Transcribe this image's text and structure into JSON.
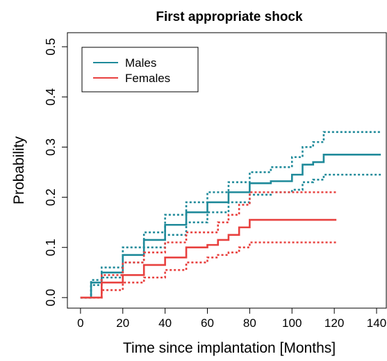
{
  "chart_data": {
    "type": "step",
    "title": "First appropriate shock",
    "x_label": "Time since implantation [Months]",
    "y_label": "Probability",
    "xlim": [
      -6.2,
      144.6
    ],
    "ylim": [
      -0.021,
      0.528
    ],
    "xticks": [
      0,
      20,
      40,
      60,
      80,
      100,
      120,
      140
    ],
    "yticks": [
      {
        "value": 0,
        "label": "0.0"
      },
      0.1,
      0.2,
      0.3,
      0.4,
      0.5
    ],
    "legend": "top-left",
    "series": [
      {
        "name": "Males",
        "color": "#1f8a9a",
        "x": [
          0,
          5,
          10,
          20,
          30,
          40,
          50,
          60,
          70,
          80,
          90,
          100,
          105,
          110,
          115,
          142
        ],
        "values": [
          0,
          0.03,
          0.05,
          0.085,
          0.115,
          0.145,
          0.17,
          0.19,
          0.21,
          0.228,
          0.232,
          0.245,
          0.265,
          0.27,
          0.285,
          0.285
        ],
        "upper": [
          0,
          0.035,
          0.06,
          0.1,
          0.13,
          0.165,
          0.19,
          0.21,
          0.23,
          0.25,
          0.26,
          0.28,
          0.3,
          0.31,
          0.33,
          0.33
        ],
        "lower": [
          0,
          0.025,
          0.04,
          0.07,
          0.1,
          0.125,
          0.15,
          0.17,
          0.19,
          0.205,
          0.21,
          0.215,
          0.23,
          0.235,
          0.245,
          0.245
        ]
      },
      {
        "name": "Females",
        "color": "#e8413f",
        "x": [
          0,
          10,
          20,
          30,
          40,
          50,
          60,
          65,
          70,
          75,
          80,
          121
        ],
        "values": [
          0,
          0.03,
          0.045,
          0.065,
          0.08,
          0.1,
          0.105,
          0.115,
          0.125,
          0.14,
          0.155,
          0.155
        ],
        "upper": [
          0,
          0.045,
          0.07,
          0.09,
          0.11,
          0.13,
          0.13,
          0.15,
          0.165,
          0.185,
          0.21,
          0.21
        ],
        "lower": [
          0,
          0.015,
          0.03,
          0.04,
          0.055,
          0.07,
          0.08,
          0.085,
          0.09,
          0.1,
          0.11,
          0.11
        ]
      }
    ]
  }
}
